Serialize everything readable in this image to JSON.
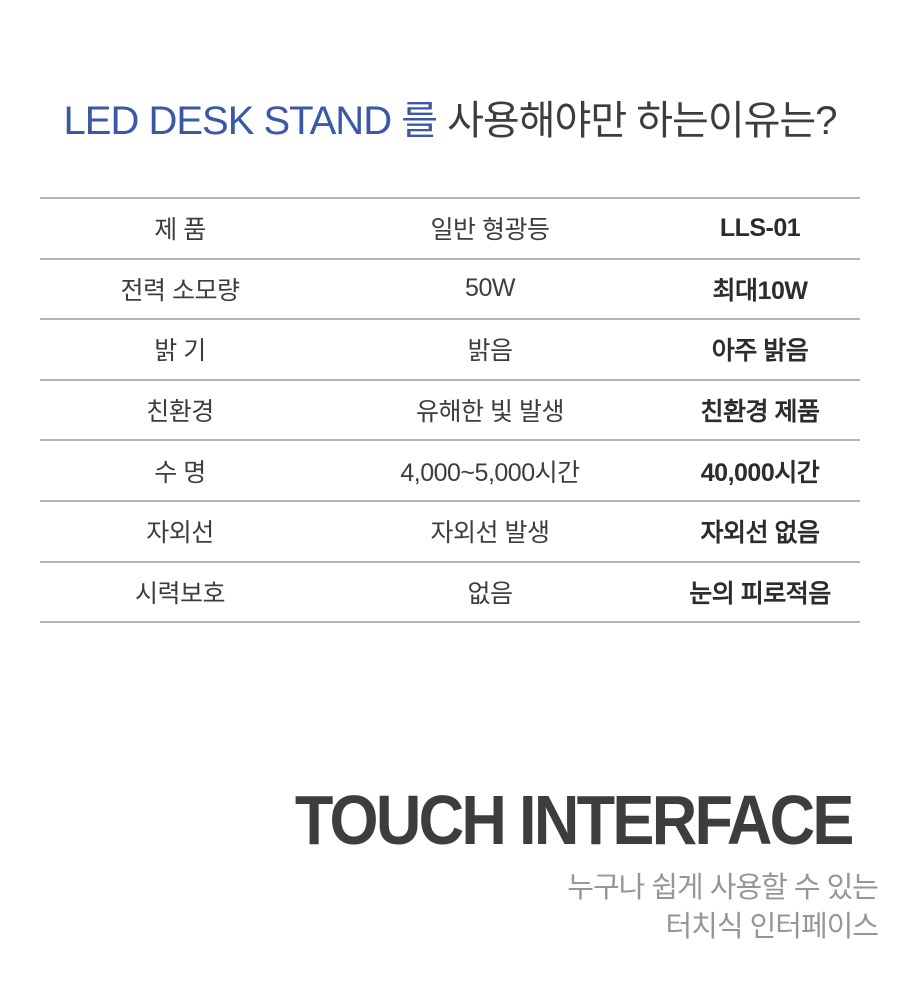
{
  "page": {
    "background_color": "#ffffff",
    "accent_color": "#3a57a8",
    "line_color": "#b4b4b4"
  },
  "header": {
    "title_highlight": "LED DESK STAND 를",
    "title_rest": " 사용해야만 하는이유는?"
  },
  "comparison_table": {
    "rows": [
      {
        "label": "제 품",
        "fluorescent": "일반 형광등",
        "lls01": "LLS-01"
      },
      {
        "label": "전력 소모량",
        "fluorescent": "50W",
        "lls01": "최대10W"
      },
      {
        "label": "밝 기",
        "fluorescent": "밝음",
        "lls01": "아주 밝음"
      },
      {
        "label": "친환경",
        "fluorescent": "유해한 빛 발생",
        "lls01": "친환경 제품"
      },
      {
        "label": "수 명",
        "fluorescent": "4,000~5,000시간",
        "lls01": "40,000시간"
      },
      {
        "label": "자외선",
        "fluorescent": "자외선 발생",
        "lls01": "자외선 없음"
      },
      {
        "label": "시력보호",
        "fluorescent": "없음",
        "lls01": "눈의 피로적음"
      }
    ]
  },
  "touch_section": {
    "heading": "TOUCH INTERFACE",
    "subtitle_line1": "누구나 쉽게 사용할 수 있는",
    "subtitle_line2": "터치식 인터페이스"
  }
}
